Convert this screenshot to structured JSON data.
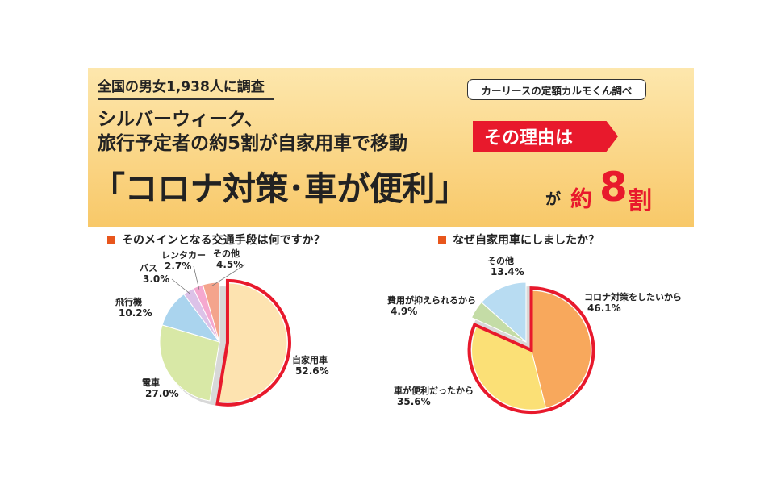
{
  "header": {
    "survey_label": "全国の男女1,938人に調査",
    "source_label": "カーリースの定額カルモくん調べ",
    "headline_line1": "シルバーウィーク、",
    "headline_line2": "旅行予定者の約5割が自家用車で移動",
    "badge_label": "その理由は",
    "big_statement": "「コロナ対策･車が便利」",
    "ga": "が",
    "yaku": "約",
    "eight": "8",
    "wari": "割"
  },
  "colors": {
    "highlight": "#e8192c",
    "banner_top": "#fde7ad",
    "banner_bottom": "#f8c868",
    "question_marker": "#e8561c"
  },
  "chart_data": [
    {
      "type": "pie",
      "title": "そのメインとなる交通手段は何ですか？",
      "slices": [
        {
          "label": "自家用車",
          "value": 52.6,
          "value_label": "52.6%",
          "color": "#fde3b0"
        },
        {
          "label": "電車",
          "value": 27.0,
          "value_label": "27.0%",
          "color": "#d8e8a6"
        },
        {
          "label": "飛行機",
          "value": 10.2,
          "value_label": "10.2%",
          "color": "#aad4ee"
        },
        {
          "label": "バス",
          "value": 3.0,
          "value_label": "3.0%",
          "color": "#dcc2e8"
        },
        {
          "label": "レンタカー",
          "value": 2.7,
          "value_label": "2.7%",
          "color": "#f5a8cf"
        },
        {
          "label": "その他",
          "value": 4.5,
          "value_label": "4.5%",
          "color": "#f4a48c"
        }
      ]
    },
    {
      "type": "pie",
      "title": "なぜ自家用車にしましたか？",
      "slices": [
        {
          "label": "コロナ対策をしたいから",
          "value": 46.1,
          "value_label": "46.1%",
          "color": "#f8a85c"
        },
        {
          "label": "車が便利だったから",
          "value": 35.6,
          "value_label": "35.6%",
          "color": "#fbe076"
        },
        {
          "label": "費用が抑えられるから",
          "value": 4.9,
          "value_label": "4.9%",
          "color": "#c4dca6"
        },
        {
          "label": "その他",
          "value": 13.4,
          "value_label": "13.4%",
          "color": "#b8dcf2"
        }
      ]
    }
  ]
}
